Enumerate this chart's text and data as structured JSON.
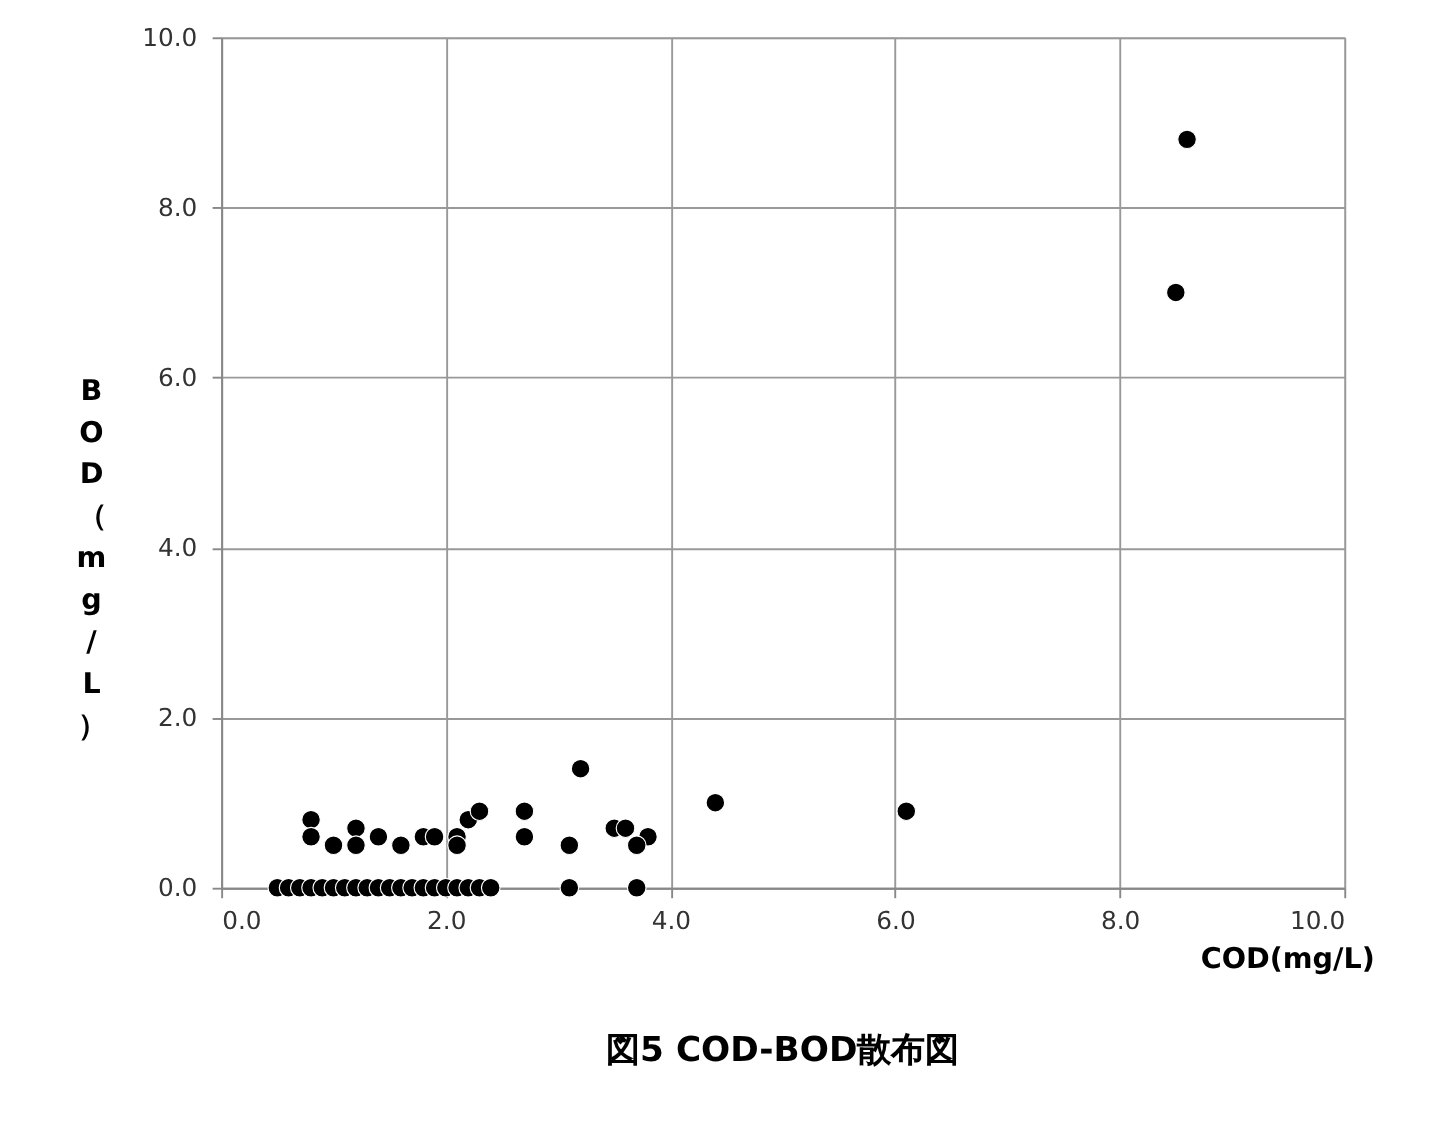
{
  "chart_data": {
    "type": "scatter",
    "title": "図5 COD-BOD散布図",
    "xlabel": "COD(mg/L)",
    "ylabel": "BOD（mg/L）",
    "x": [
      0.5,
      0.6,
      0.7,
      0.8,
      0.9,
      1.0,
      1.1,
      1.2,
      1.3,
      1.4,
      1.5,
      1.6,
      1.7,
      1.8,
      1.9,
      2.0,
      2.1,
      2.2,
      2.3,
      2.4,
      3.1,
      3.7,
      0.8,
      0.8,
      1.0,
      1.2,
      1.2,
      1.4,
      1.6,
      1.8,
      1.9,
      2.1,
      2.1,
      2.2,
      2.3,
      2.7,
      2.7,
      3.1,
      3.2,
      3.5,
      3.6,
      3.8,
      3.7,
      4.4,
      6.1,
      8.5,
      8.6
    ],
    "series": [
      {
        "color": "#000000",
        "values": [
          0,
          0,
          0,
          0,
          0,
          0,
          0,
          0,
          0,
          0,
          0,
          0,
          0,
          0,
          0,
          0,
          0,
          0,
          0,
          0,
          0,
          0,
          0.8,
          0.6,
          0.5,
          0.7,
          0.5,
          0.6,
          0.5,
          0.6,
          0.6,
          0.6,
          0.5,
          0.8,
          0.9,
          0.9,
          0.6,
          0.5,
          1.4,
          0.7,
          0.7,
          0.6,
          0.5,
          1.0,
          0.9,
          7.0,
          8.8
        ]
      }
    ],
    "xlim": [
      0,
      10
    ],
    "ylim": [
      0,
      10
    ],
    "xticks": [
      {
        "value": 0,
        "label": "0.0"
      },
      {
        "value": 2,
        "label": "2.0"
      },
      {
        "value": 4,
        "label": "4.0"
      },
      {
        "value": 6,
        "label": "6.0"
      },
      {
        "value": 8,
        "label": "8.0"
      },
      {
        "value": 10,
        "label": "10.0"
      }
    ],
    "yticks": [
      {
        "value": 0,
        "label": "0.0"
      },
      {
        "value": 2,
        "label": "2.0"
      },
      {
        "value": 4,
        "label": "4.0"
      },
      {
        "value": 6,
        "label": "6.0"
      },
      {
        "value": 8,
        "label": "8.0"
      },
      {
        "value": 10,
        "label": "10.0"
      }
    ],
    "grid": true,
    "marker": "circle"
  }
}
